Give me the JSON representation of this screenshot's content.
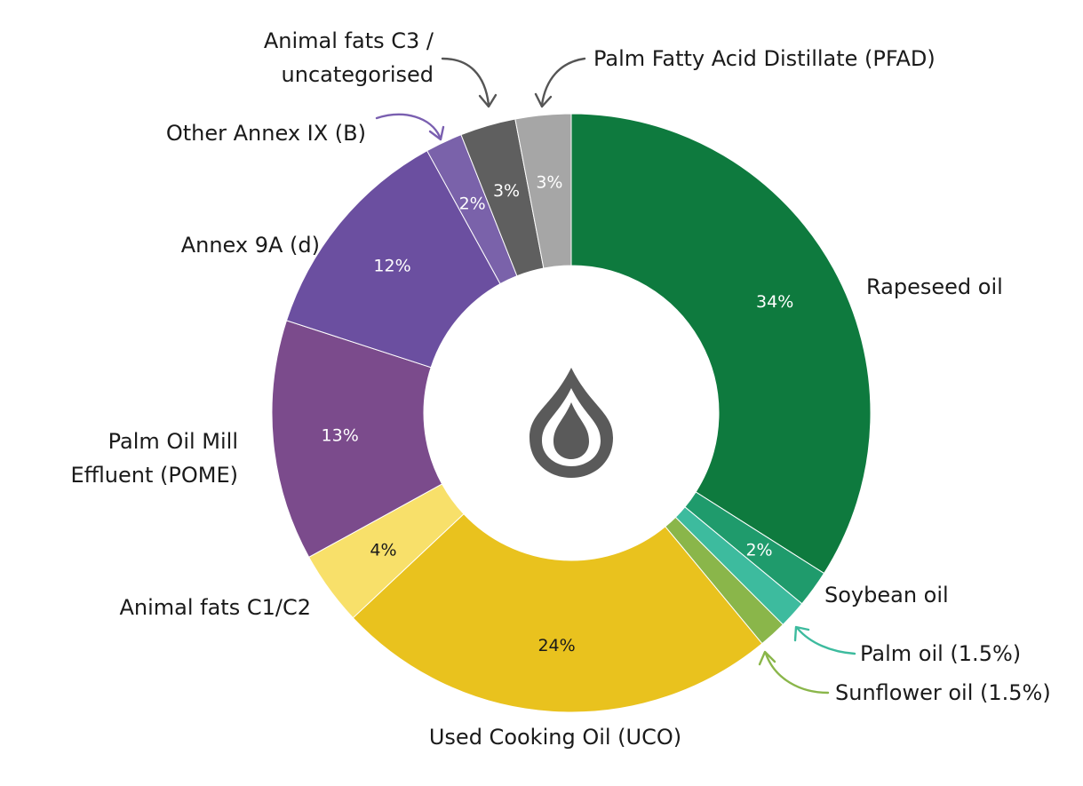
{
  "chart_data": {
    "type": "pie",
    "variant": "donut",
    "center_icon": "oil-drop-icon",
    "slices": [
      {
        "label": "Rapeseed oil",
        "value": 34,
        "pct_label": "34%",
        "color": "#0e7a3e",
        "pct_text_color": "#ffffff"
      },
      {
        "label": "Soybean oil",
        "value": 2,
        "pct_label": "2%",
        "color": "#1f9b6c",
        "pct_text_color": "#ffffff"
      },
      {
        "label": "Palm oil (1.5%)",
        "value": 1.5,
        "pct_label": "",
        "color": "#3dbb9e",
        "pct_text_color": "#ffffff"
      },
      {
        "label": "Sunflower oil (1.5%)",
        "value": 1.5,
        "pct_label": "",
        "color": "#8ab64a",
        "pct_text_color": "#ffffff"
      },
      {
        "label": "Used Cooking Oil (UCO)",
        "value": 24,
        "pct_label": "24%",
        "color": "#e9c21e",
        "pct_text_color": "#1a1a1a"
      },
      {
        "label": "Animal fats C1/C2",
        "value": 4,
        "pct_label": "4%",
        "color": "#f8e06a",
        "pct_text_color": "#1a1a1a"
      },
      {
        "label": "Palm Oil Mill Effluent (POME)",
        "value": 13,
        "pct_label": "13%",
        "color": "#7b4b8c",
        "pct_text_color": "#ffffff"
      },
      {
        "label": "Annex 9A (d)",
        "value": 12,
        "pct_label": "12%",
        "color": "#6b4fa0",
        "pct_text_color": "#ffffff"
      },
      {
        "label": "Other Annex IX (B)",
        "value": 2,
        "pct_label": "2%",
        "color": "#7a62aa",
        "pct_text_color": "#ffffff"
      },
      {
        "label": "Animal fats C3 / uncategorised",
        "value": 3,
        "pct_label": "3%",
        "color": "#5f5f5f",
        "pct_text_color": "#ffffff"
      },
      {
        "label": "Palm Fatty Acid Distillate (PFAD)",
        "value": 3,
        "pct_label": "3%",
        "color": "#a6a6a6",
        "pct_text_color": "#ffffff"
      }
    ],
    "external_labels": {
      "rapeseed": "Rapeseed oil",
      "soybean": "Soybean oil",
      "palm": "Palm oil (1.5%)",
      "sunflower": "Sunflower oil (1.5%)",
      "uco": "Used Cooking Oil (UCO)",
      "animal_c1c2": "Animal fats C1/C2",
      "pome_line1": "Palm Oil Mill",
      "pome_line2": "Effluent (POME)",
      "annex9a": "Annex 9A (d)",
      "other_annex": "Other Annex IX (B)",
      "animal_c3_line1": "Animal fats C3 /",
      "animal_c3_line2": "uncategorised",
      "pfad": "Palm Fatty Acid Distillate (PFAD)"
    },
    "colors": {
      "arrow_gray": "#555555",
      "arrow_purple": "#7a5fb0",
      "arrow_teal": "#3dbb9e",
      "arrow_green": "#8ab64a",
      "icon_gray": "#5a5a5a"
    }
  }
}
